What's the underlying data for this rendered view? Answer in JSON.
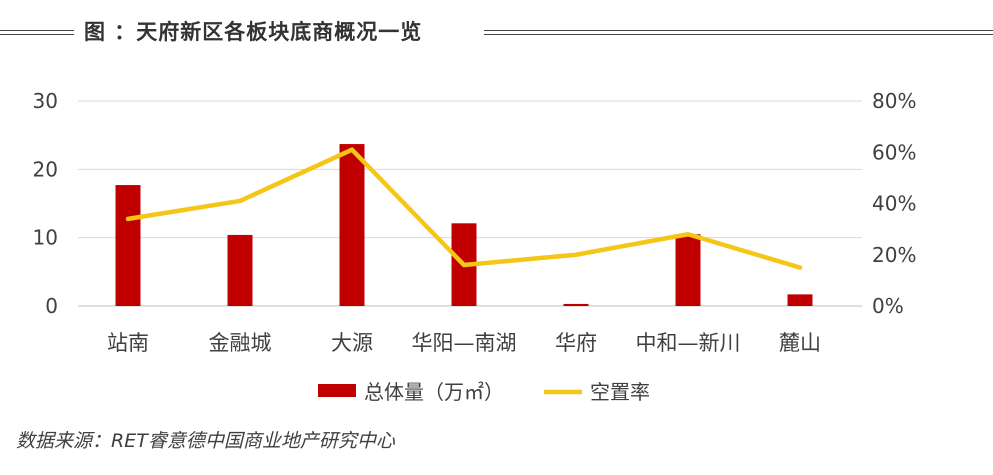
{
  "header": {
    "title": "图 ：天府新区各板块底商概况一览"
  },
  "source": {
    "text": "数据来源：RET睿意德中国商业地产研究中心"
  },
  "colors": {
    "bar": "#C00000",
    "line": "#F5C518",
    "grid": "#D9D9D9",
    "text": "#404040"
  },
  "chart_data": {
    "type": "bar",
    "title": "",
    "categories": [
      "站南",
      "金融城",
      "大源",
      "华阳—南湖",
      "华府",
      "中和—新川",
      "麓山"
    ],
    "series": [
      {
        "name": "总体量（万㎡）",
        "type": "bar",
        "axis": "left",
        "values": [
          17.7,
          10.4,
          23.7,
          12.1,
          0.3,
          10.5,
          1.7
        ]
      },
      {
        "name": "空置率",
        "type": "line",
        "axis": "right",
        "values": [
          0.34,
          0.41,
          0.61,
          0.16,
          0.2,
          0.28,
          0.15
        ]
      }
    ],
    "y_left": {
      "ylim": [
        0,
        30
      ],
      "ticks": [
        0,
        10,
        20,
        30
      ],
      "tick_labels": [
        "0",
        "10",
        "20",
        "30"
      ]
    },
    "y_right": {
      "ylim": [
        0,
        0.8
      ],
      "ticks": [
        0,
        0.2,
        0.4,
        0.6,
        0.8
      ],
      "tick_labels": [
        "0%",
        "20%",
        "40%",
        "60%",
        "80%"
      ]
    },
    "grid": true,
    "legend": {
      "position": "bottom",
      "items": [
        "总体量（万㎡）",
        "空置率"
      ]
    }
  }
}
